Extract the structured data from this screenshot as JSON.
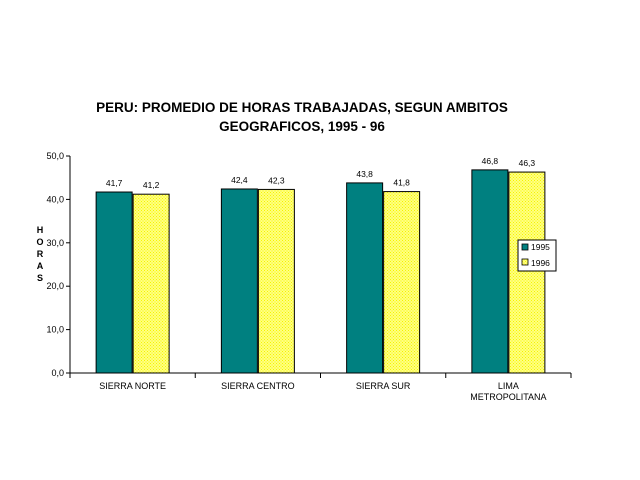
{
  "chart_data": {
    "type": "bar",
    "title_line1": "PERU: PROMEDIO DE HORAS TRABAJADAS, SEGUN AMBITOS",
    "title_line2": "GEOGRAFICOS, 1995 - 96",
    "ylabel": "HORAS",
    "xlabel": "",
    "ylim": [
      0,
      50
    ],
    "yticks": [
      "0,0",
      "10,0",
      "20,0",
      "30,0",
      "40,0",
      "50,0"
    ],
    "ytick_values": [
      0,
      10,
      20,
      30,
      40,
      50
    ],
    "categories": [
      [
        "SIERRA NORTE"
      ],
      [
        "SIERRA CENTRO"
      ],
      [
        "SIERRA SUR"
      ],
      [
        "LIMA",
        "METROPOLITANA"
      ]
    ],
    "series": [
      {
        "name": "1995",
        "color": "#008080",
        "values": [
          41.7,
          42.4,
          43.8,
          46.8
        ],
        "labels": [
          "41,7",
          "42,4",
          "43,8",
          "46,8"
        ]
      },
      {
        "name": "1996",
        "color": "#ffff80",
        "values": [
          41.2,
          42.3,
          41.8,
          46.3
        ],
        "labels": [
          "41,2",
          "42,3",
          "41,8",
          "46,3"
        ]
      }
    ],
    "grid": false,
    "legend_position": "right"
  }
}
